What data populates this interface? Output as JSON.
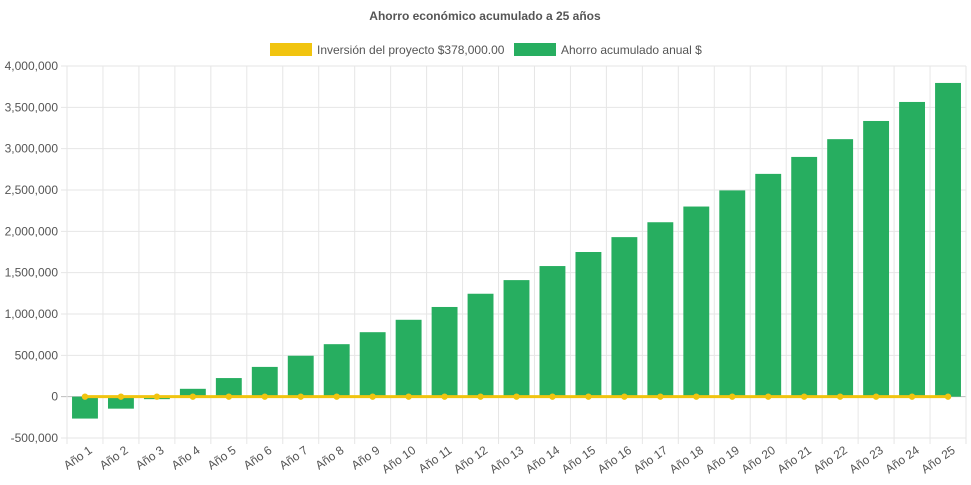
{
  "chart_data": {
    "type": "bar",
    "title": "Ahorro económico acumulado a 25 años",
    "legend_position": "top",
    "grid": true,
    "categories": [
      "Año 1",
      "Año 2",
      "Año 3",
      "Año 4",
      "Año 5",
      "Año 6",
      "Año 7",
      "Año 8",
      "Año 9",
      "Año 10",
      "Año 11",
      "Año 12",
      "Año 13",
      "Año 14",
      "Año 15",
      "Año 16",
      "Año 17",
      "Año 18",
      "Año 19",
      "Año 20",
      "Año 21",
      "Año 22",
      "Año 23",
      "Año 24",
      "Año 25"
    ],
    "ylim": [
      -500000,
      4000000
    ],
    "yticks": [
      4000000,
      3500000,
      3000000,
      2500000,
      2000000,
      1500000,
      1000000,
      500000,
      0,
      -500000
    ],
    "ytick_labels": [
      "4,000,000",
      "3,500,000",
      "3,000,000",
      "2,500,000",
      "2,000,000",
      "1,500,000",
      "1,000,000",
      "500,000",
      "0",
      "-500,000"
    ],
    "series": [
      {
        "name": "Inversión del proyecto $378,000.00",
        "type": "line",
        "color": "#f1c40f",
        "values": [
          0,
          0,
          0,
          0,
          0,
          0,
          0,
          0,
          0,
          0,
          0,
          0,
          0,
          0,
          0,
          0,
          0,
          0,
          0,
          0,
          0,
          0,
          0,
          0,
          0
        ]
      },
      {
        "name": "Ahorro acumulado anual $",
        "type": "bar",
        "color": "#27ae60",
        "values": [
          -265000,
          -145000,
          -30000,
          95000,
          225000,
          360000,
          495000,
          635000,
          780000,
          930000,
          1085000,
          1245000,
          1410000,
          1580000,
          1750000,
          1930000,
          2110000,
          2300000,
          2495000,
          2695000,
          2900000,
          3115000,
          3335000,
          3565000,
          3795000
        ]
      }
    ]
  }
}
